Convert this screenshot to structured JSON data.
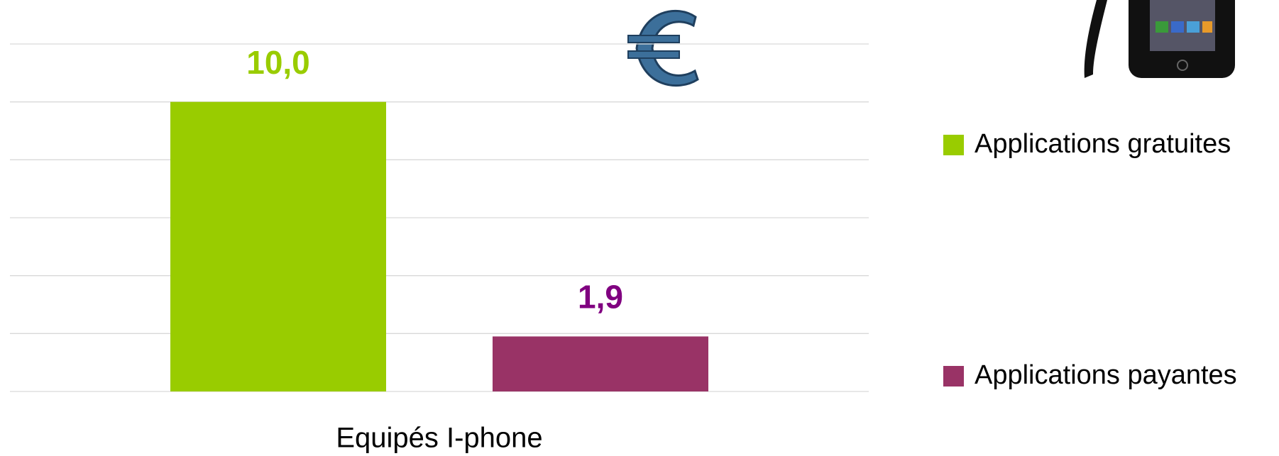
{
  "chart_data": {
    "type": "bar",
    "categories": [
      "Equipés I-phone"
    ],
    "series": [
      {
        "name": "Applications gratuites",
        "color": "#99cc00",
        "label_color": "#99cc00",
        "values": [
          10.0
        ],
        "value_labels": [
          "10,0"
        ]
      },
      {
        "name": "Applications payantes",
        "color": "#993366",
        "label_color": "#800080",
        "values": [
          1.9
        ],
        "value_labels": [
          "1,9"
        ]
      }
    ],
    "ylim": [
      0,
      12
    ],
    "yticks": [
      0,
      2,
      4,
      6,
      8,
      10,
      12
    ],
    "grid": true,
    "legend": "right"
  }
}
